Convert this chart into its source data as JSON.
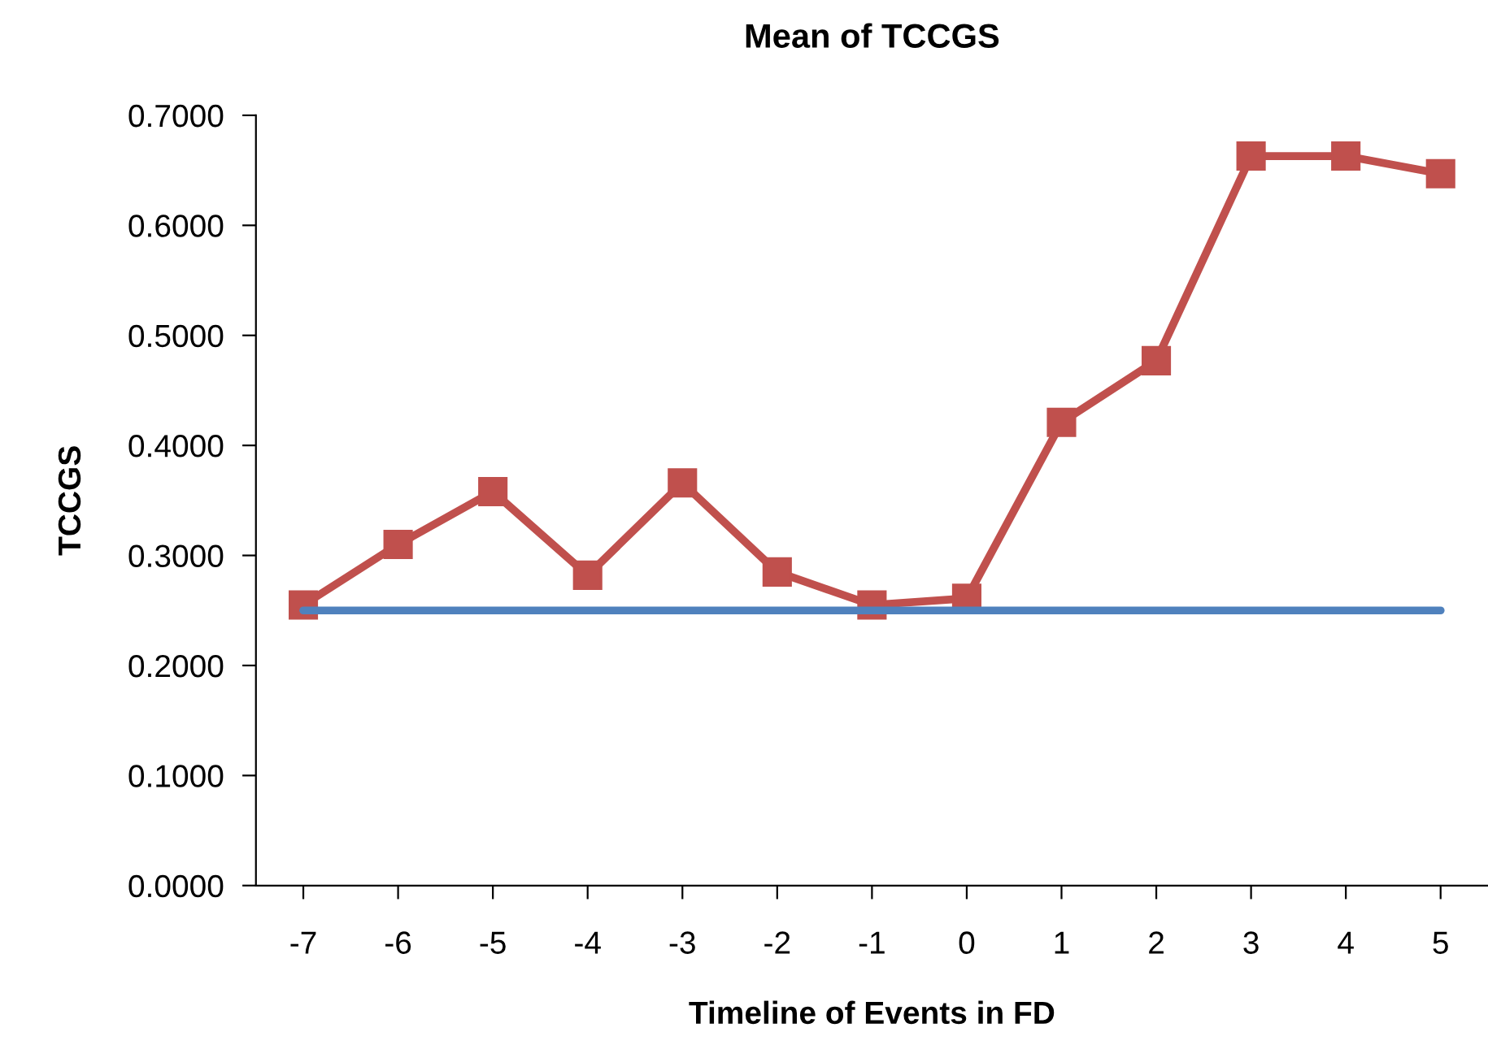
{
  "chart_data": {
    "type": "line",
    "title": "Mean of TCCGS",
    "xlabel": "Timeline of Events in FD",
    "ylabel": "TCCGS",
    "categories": [
      "-7",
      "-6",
      "-5",
      "-4",
      "-3",
      "-2",
      "-1",
      "0",
      "1",
      "2",
      "3",
      "4",
      "5"
    ],
    "series": [
      {
        "color": "#c0504d",
        "marker": "square",
        "values": [
          0.255,
          0.31,
          0.358,
          0.282,
          0.366,
          0.285,
          0.255,
          0.261,
          0.421,
          0.477,
          0.663,
          0.663,
          0.647
        ]
      },
      {
        "color": "#4f81bd",
        "marker": "none",
        "values": [
          0.25,
          0.25,
          0.25,
          0.25,
          0.25,
          0.25,
          0.25,
          0.25,
          0.25,
          0.25,
          0.25,
          0.25,
          0.25
        ]
      }
    ],
    "ylim": [
      0,
      0.7
    ],
    "yticks": [
      {
        "value": 0,
        "label": "0.0000"
      },
      {
        "value": 0.1,
        "label": "0.1000"
      },
      {
        "value": 0.2,
        "label": "0.2000"
      },
      {
        "value": 0.3,
        "label": "0.3000"
      },
      {
        "value": 0.4,
        "label": "0.4000"
      },
      {
        "value": 0.5,
        "label": "0.5000"
      },
      {
        "value": 0.6,
        "label": "0.6000"
      },
      {
        "value": 0.7,
        "label": "0.7000"
      }
    ],
    "grid": false,
    "legend": false,
    "line_style": "solid"
  }
}
